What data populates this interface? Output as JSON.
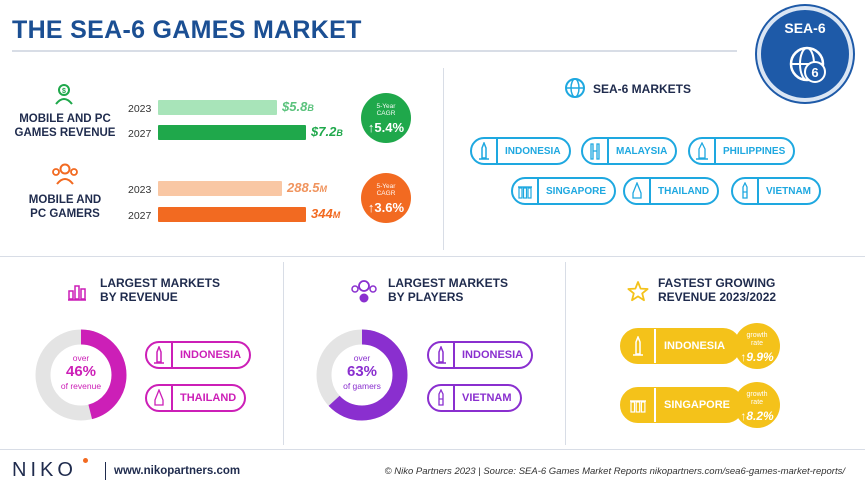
{
  "title": "THE SEA-6 GAMES MARKET",
  "badge": {
    "text": "SEA-6",
    "number": "6"
  },
  "colors": {
    "navy": "#1b4f93",
    "green": "#1fa84b",
    "green_light": "#a8e4b9",
    "orange": "#f26a21",
    "orange_light": "#f9c7a4",
    "blue": "#1ea8e0",
    "magenta": "#cc1fb7",
    "purple": "#8a2fcf",
    "yellow": "#f4c21a"
  },
  "revenue": {
    "label_line1": "MOBILE AND PC",
    "label_line2": "GAMES REVENUE",
    "year_a": "2023",
    "year_b": "2027",
    "value_a": "$5.8",
    "unit_a": "B",
    "value_b": "$7.2",
    "unit_b": "B",
    "cagr_label_line1": "5-Year",
    "cagr_label_line2": "CAGR",
    "cagr_value": "5.4%"
  },
  "gamers": {
    "label_line1": "MOBILE AND",
    "label_line2": "PC GAMERS",
    "year_a": "2023",
    "year_b": "2027",
    "value_a": "288.5",
    "unit_a": "M",
    "value_b": "344",
    "unit_b": "M",
    "cagr_label_line1": "5-Year",
    "cagr_label_line2": "CAGR",
    "cagr_value": "3.6%"
  },
  "chart_data": [
    {
      "type": "bar",
      "orientation": "horizontal",
      "categories": [
        "2023",
        "2027"
      ],
      "values": [
        5.8,
        7.2
      ]
    },
    {
      "type": "bar",
      "orientation": "horizontal",
      "categories": [
        "2023",
        "2027"
      ],
      "values": [
        288.5,
        344
      ]
    },
    {
      "type": "pie",
      "values": [
        46,
        54
      ]
    },
    {
      "type": "pie",
      "values": [
        63,
        37
      ]
    }
  ],
  "markets": {
    "title": "SEA-6 MARKETS",
    "items": [
      "INDONESIA",
      "MALAYSIA",
      "PHILIPPINES",
      "SINGAPORE",
      "THAILAND",
      "VIETNAM"
    ]
  },
  "largest_revenue": {
    "title_line1": "LARGEST MARKETS",
    "title_line2": "BY REVENUE",
    "donut_top": "over",
    "donut_value": "46%",
    "donut_bottom": "of revenue",
    "markets": [
      "INDONESIA",
      "THAILAND"
    ]
  },
  "largest_players": {
    "title_line1": "LARGEST MARKETS",
    "title_line2": "BY PLAYERS",
    "donut_top": "over",
    "donut_value": "63%",
    "donut_bottom": "of gamers",
    "markets": [
      "INDONESIA",
      "VIETNAM"
    ]
  },
  "fastest_growing": {
    "title_line1": "FASTEST GROWING",
    "title_line2": "REVENUE 2023/2022",
    "items": [
      {
        "market": "INDONESIA",
        "growth_label_line1": "growth",
        "growth_label_line2": "rate",
        "growth_value": "9.9%"
      },
      {
        "market": "SINGAPORE",
        "growth_label_line1": "growth",
        "growth_label_line2": "rate",
        "growth_value": "8.2%"
      }
    ]
  },
  "footer": {
    "logo": "NIKO",
    "url": "www.nikopartners.com",
    "source": "© Niko Partners 2023 | Source: SEA-6 Games Market Reports nikopartners.com/sea6-games-market-reports/"
  }
}
